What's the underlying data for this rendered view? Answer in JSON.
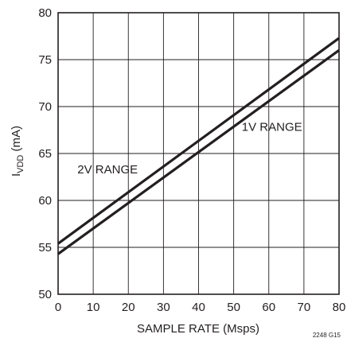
{
  "chart_data": {
    "type": "line",
    "title": "",
    "xlabel": "SAMPLE RATE (Msps)",
    "ylabel": {
      "main": "I",
      "sub": "VDD",
      "tail": " (mA)"
    },
    "xlim": [
      0,
      80
    ],
    "ylim": [
      50,
      80
    ],
    "xticks": [
      0,
      10,
      20,
      30,
      40,
      50,
      60,
      70,
      80
    ],
    "yticks": [
      50,
      55,
      60,
      65,
      70,
      75,
      80
    ],
    "grid": true,
    "series": [
      {
        "name": "2V RANGE",
        "x": [
          0,
          80
        ],
        "y": [
          55.4,
          77.3
        ]
      },
      {
        "name": "1V RANGE",
        "x": [
          0,
          80
        ],
        "y": [
          54.3,
          76.0
        ]
      }
    ],
    "annotations": [
      {
        "text": "2V RANGE",
        "x": 5.5,
        "y": 62.9
      },
      {
        "text": "1V RANGE",
        "x": 52.3,
        "y": 67.4
      }
    ],
    "figure_id": "2248 G15"
  }
}
